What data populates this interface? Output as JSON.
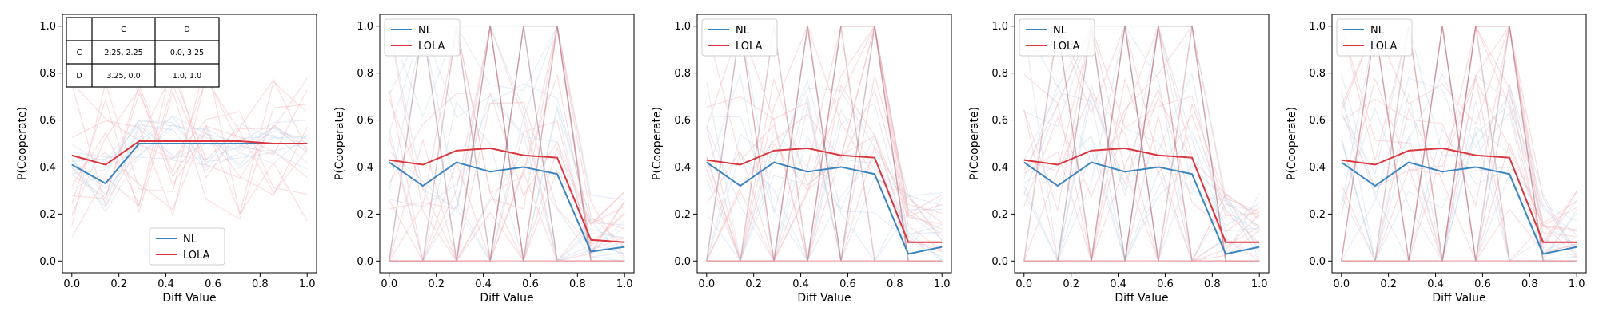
{
  "colors": {
    "nl": "#3a84c0",
    "lola": "#d9363e",
    "faint_nl": "#c6d6ea",
    "faint_lola": "#f4b4b8",
    "faint_dark": "#b06070"
  },
  "payoff_table": {
    "header": [
      "",
      "C",
      "D"
    ],
    "rows": [
      [
        "C",
        "2.25, 2.25",
        "0.0, 3.25"
      ],
      [
        "D",
        "3.25, 0.0",
        "1.0, 1.0"
      ]
    ]
  },
  "chart_data": [
    {
      "type": "line",
      "xlabel": "Diff Value",
      "ylabel": "P(Cooperate)",
      "xlim": [
        -0.04,
        1.04
      ],
      "ylim": [
        -0.05,
        1.05
      ],
      "xticks": [
        "0.0",
        "0.2",
        "0.4",
        "0.6",
        "0.8",
        "1.0"
      ],
      "yticks": [
        "0.0",
        "0.2",
        "0.4",
        "0.6",
        "0.8",
        "1.0"
      ],
      "legend": "bottom-center",
      "grid": false,
      "x": [
        0,
        0.143,
        0.286,
        0.429,
        0.571,
        0.714,
        0.857,
        1.0
      ],
      "series": [
        {
          "name": "NL",
          "values": [
            0.41,
            0.33,
            0.5,
            0.5,
            0.5,
            0.5,
            0.5,
            0.5
          ]
        },
        {
          "name": "LOLA",
          "values": [
            0.45,
            0.41,
            0.51,
            0.51,
            0.51,
            0.51,
            0.5,
            0.5
          ]
        }
      ]
    },
    {
      "type": "line",
      "xlabel": "Diff Value",
      "ylabel": "P(Cooperate)",
      "xlim": [
        -0.04,
        1.04
      ],
      "ylim": [
        -0.05,
        1.05
      ],
      "xticks": [
        "0.0",
        "0.2",
        "0.4",
        "0.6",
        "0.8",
        "1.0"
      ],
      "yticks": [
        "0.0",
        "0.2",
        "0.4",
        "0.6",
        "0.8",
        "1.0"
      ],
      "legend": "top-left",
      "grid": false,
      "x": [
        0,
        0.143,
        0.286,
        0.429,
        0.571,
        0.714,
        0.857,
        1.0
      ],
      "series": [
        {
          "name": "NL",
          "values": [
            0.42,
            0.32,
            0.42,
            0.38,
            0.4,
            0.37,
            0.04,
            0.06
          ]
        },
        {
          "name": "LOLA",
          "values": [
            0.43,
            0.41,
            0.47,
            0.48,
            0.45,
            0.44,
            0.09,
            0.08
          ]
        }
      ]
    },
    {
      "type": "line",
      "xlabel": "Diff Value",
      "ylabel": "P(Cooperate)",
      "xlim": [
        -0.04,
        1.04
      ],
      "ylim": [
        -0.05,
        1.05
      ],
      "xticks": [
        "0.0",
        "0.2",
        "0.4",
        "0.6",
        "0.8",
        "1.0"
      ],
      "yticks": [
        "0.0",
        "0.2",
        "0.4",
        "0.6",
        "0.8",
        "1.0"
      ],
      "legend": "top-left",
      "grid": false,
      "x": [
        0,
        0.143,
        0.286,
        0.429,
        0.571,
        0.714,
        0.857,
        1.0
      ],
      "series": [
        {
          "name": "NL",
          "values": [
            0.42,
            0.32,
            0.42,
            0.38,
            0.4,
            0.37,
            0.03,
            0.06
          ]
        },
        {
          "name": "LOLA",
          "values": [
            0.43,
            0.41,
            0.47,
            0.48,
            0.45,
            0.44,
            0.08,
            0.08
          ]
        }
      ]
    },
    {
      "type": "line",
      "xlabel": "Diff Value",
      "ylabel": "P(Cooperate)",
      "xlim": [
        -0.04,
        1.04
      ],
      "ylim": [
        -0.05,
        1.05
      ],
      "xticks": [
        "0.0",
        "0.2",
        "0.4",
        "0.6",
        "0.8",
        "1.0"
      ],
      "yticks": [
        "0.0",
        "0.2",
        "0.4",
        "0.6",
        "0.8",
        "1.0"
      ],
      "legend": "top-left",
      "grid": false,
      "x": [
        0,
        0.143,
        0.286,
        0.429,
        0.571,
        0.714,
        0.857,
        1.0
      ],
      "series": [
        {
          "name": "NL",
          "values": [
            0.42,
            0.32,
            0.42,
            0.38,
            0.4,
            0.37,
            0.03,
            0.06
          ]
        },
        {
          "name": "LOLA",
          "values": [
            0.43,
            0.41,
            0.47,
            0.48,
            0.45,
            0.44,
            0.08,
            0.08
          ]
        }
      ]
    },
    {
      "type": "line",
      "xlabel": "Diff Value",
      "ylabel": "P(Cooperate)",
      "xlim": [
        -0.04,
        1.04
      ],
      "ylim": [
        -0.05,
        1.05
      ],
      "xticks": [
        "0.0",
        "0.2",
        "0.4",
        "0.6",
        "0.8",
        "1.0"
      ],
      "yticks": [
        "0.0",
        "0.2",
        "0.4",
        "0.6",
        "0.8",
        "1.0"
      ],
      "legend": "top-left",
      "grid": false,
      "x": [
        0,
        0.143,
        0.286,
        0.429,
        0.571,
        0.714,
        0.857,
        1.0
      ],
      "series": [
        {
          "name": "NL",
          "values": [
            0.42,
            0.32,
            0.42,
            0.38,
            0.4,
            0.37,
            0.03,
            0.06
          ]
        },
        {
          "name": "LOLA",
          "values": [
            0.43,
            0.41,
            0.47,
            0.48,
            0.45,
            0.44,
            0.08,
            0.08
          ]
        }
      ]
    }
  ]
}
